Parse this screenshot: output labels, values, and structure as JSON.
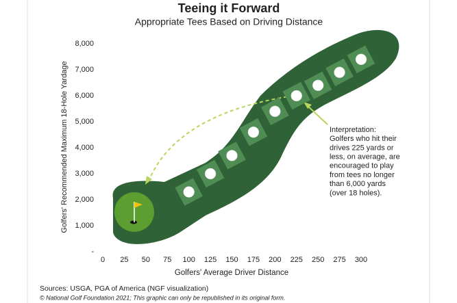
{
  "chart_data": {
    "type": "scatter",
    "title": "Teeing it Forward",
    "subtitle": "Appropriate Tees Based on Driving Distance",
    "x_label": "Golfers' Average Driver Distance",
    "y_label": "Golfers' Recommended Maximum 18-Hole Yardage",
    "x": [
      100,
      125,
      150,
      175,
      200,
      225,
      250,
      275,
      300
    ],
    "values": [
      2300,
      3000,
      3700,
      4600,
      5400,
      6000,
      6400,
      6900,
      7400
    ],
    "xlim": [
      0,
      300
    ],
    "ylim": [
      0,
      8000
    ],
    "xticks": [
      0,
      25,
      50,
      75,
      100,
      125,
      150,
      175,
      200,
      225,
      250,
      275,
      300
    ],
    "yticks": [
      {
        "value": 0,
        "label": "-"
      },
      {
        "value": 1000,
        "label": "1,000"
      },
      {
        "value": 2000,
        "label": "2,000"
      },
      {
        "value": 3000,
        "label": "3,000"
      },
      {
        "value": 4000,
        "label": "4,000"
      },
      {
        "value": 5000,
        "label": "5,000"
      },
      {
        "value": 6000,
        "label": "6,000"
      },
      {
        "value": 7000,
        "label": "7,000"
      },
      {
        "value": 8000,
        "label": "8,000"
      }
    ],
    "annotation": [
      "Interpretation:",
      "Golfers who hit their",
      "drives 225 yards or",
      "less, on average, are",
      "encouraged to play",
      "from tees no longer",
      "than 6,000 yards",
      "(over 18 holes)."
    ],
    "source": "Sources: USGA, PGA of America (NGF visualization)",
    "copyright": "© National Golf Foundation 2021; This graphic can only be republished in its original form.",
    "color": "#ffffff"
  }
}
